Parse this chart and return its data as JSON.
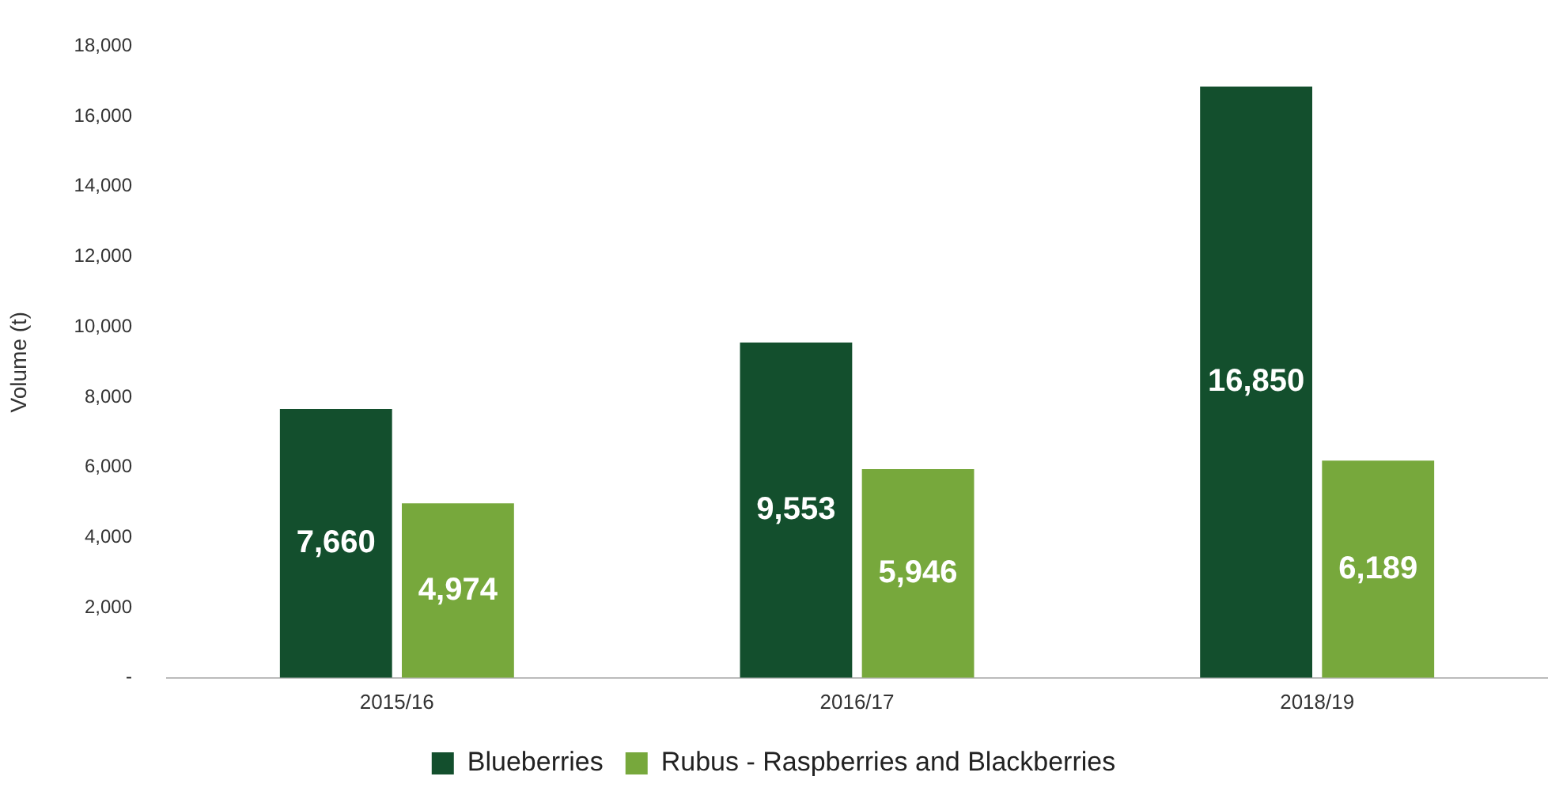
{
  "chart_data": {
    "type": "bar",
    "ylabel": "Volume (t)",
    "categories": [
      "2015/16",
      "2016/17",
      "2018/19"
    ],
    "series": [
      {
        "name": "Blueberries",
        "color": "#134f2d",
        "values": [
          7660,
          9553,
          16850
        ],
        "value_labels": [
          "7,660",
          "9,553",
          "16,850"
        ]
      },
      {
        "name": "Rubus - Raspberries and Blackberries",
        "color": "#77a83c",
        "values": [
          4974,
          5946,
          6189
        ],
        "value_labels": [
          "4,974",
          "5,946",
          "6,189"
        ]
      }
    ],
    "ylim": [
      0,
      18000
    ],
    "yticks": [
      {
        "value": 0,
        "label": "-"
      },
      {
        "value": 2000,
        "label": "2,000"
      },
      {
        "value": 4000,
        "label": "4,000"
      },
      {
        "value": 6000,
        "label": "6,000"
      },
      {
        "value": 8000,
        "label": "8,000"
      },
      {
        "value": 10000,
        "label": "10,000"
      },
      {
        "value": 12000,
        "label": "12,000"
      },
      {
        "value": 14000,
        "label": "14,000"
      },
      {
        "value": 16000,
        "label": "16,000"
      },
      {
        "value": 18000,
        "label": "18,000"
      }
    ],
    "grid": false,
    "legend": "bottom"
  }
}
